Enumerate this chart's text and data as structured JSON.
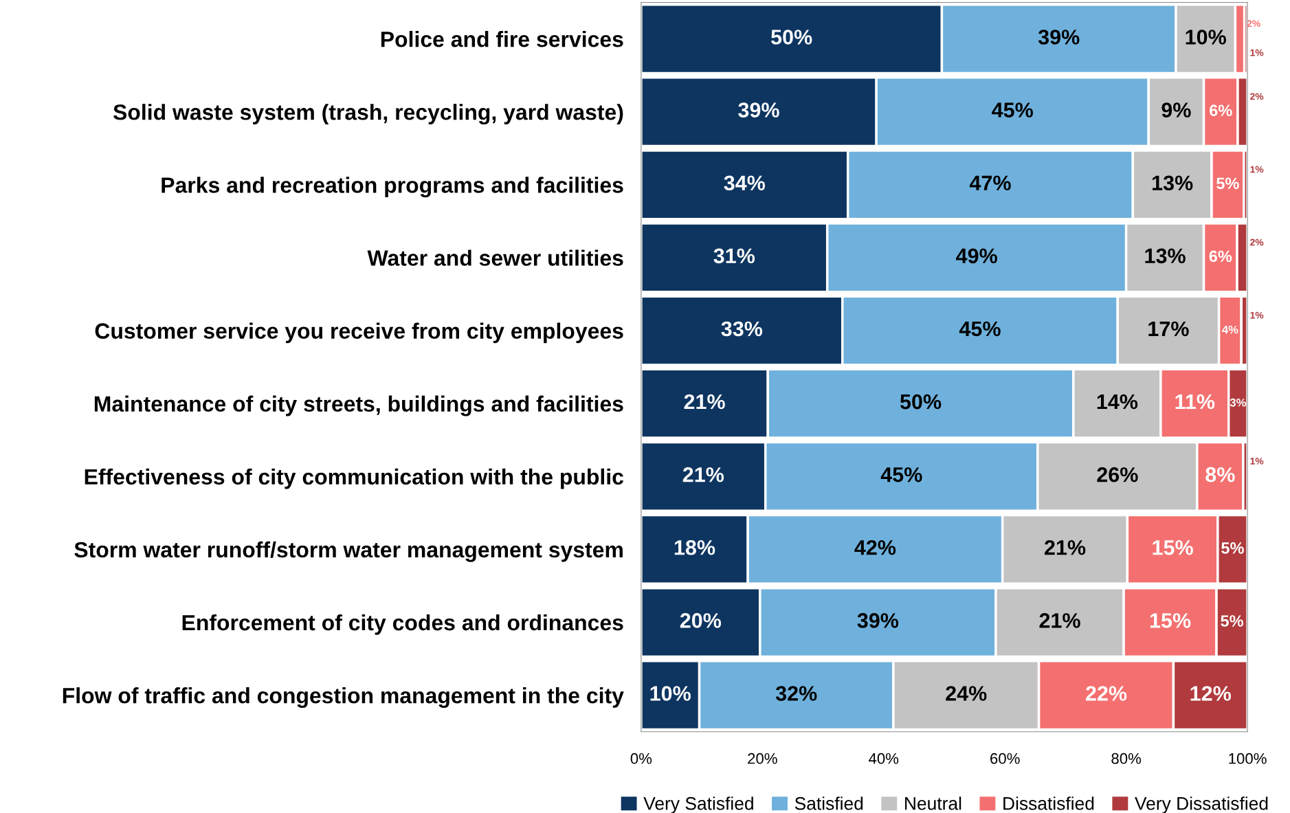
{
  "chart_data": {
    "type": "bar",
    "orientation": "horizontal",
    "stacked": true,
    "categories": [
      "Police and fire services",
      "Solid waste system (trash, recycling, yard waste)",
      "Parks and recreation programs and facilities",
      "Water and sewer utilities",
      "Customer service you receive from city employees",
      "Maintenance of city streets, buildings and facilities",
      "Effectiveness of city communication with the public",
      "Storm water runoff/storm water management system",
      "Enforcement of city codes and ordinances",
      "Flow of traffic and congestion management in the city"
    ],
    "series": [
      {
        "name": "Very Satisfied",
        "color": "#0e3560",
        "values": [
          49.6,
          38.8,
          34.1,
          30.7,
          33.2,
          20.9,
          20.5,
          17.6,
          19.6,
          9.6
        ],
        "value_labels": [
          "50%",
          "39%",
          "34%",
          "31%",
          "33%",
          "21%",
          "21%",
          "18%",
          "20%",
          "10%"
        ]
      },
      {
        "name": "Satisfied",
        "color": "#6fb1dc",
        "values": [
          38.6,
          44.9,
          47.0,
          49.3,
          45.4,
          50.4,
          44.9,
          42.0,
          38.9,
          32.0
        ],
        "value_labels": [
          "39%",
          "45%",
          "47%",
          "49%",
          "45%",
          "50%",
          "45%",
          "42%",
          "39%",
          "32%"
        ]
      },
      {
        "name": "Neutral",
        "color": "#c3c3c3",
        "values": [
          9.8,
          9.1,
          13.0,
          12.8,
          16.7,
          14.4,
          26.3,
          20.6,
          21.1,
          24.0
        ],
        "value_labels": [
          "10%",
          "9%",
          "13%",
          "13%",
          "17%",
          "14%",
          "26%",
          "21%",
          "21%",
          "24%"
        ]
      },
      {
        "name": "Dissatisfied",
        "color": "#f47070",
        "values": [
          1.5,
          5.6,
          5.3,
          5.5,
          3.7,
          11.2,
          7.6,
          14.9,
          15.3,
          22.2
        ],
        "value_labels": [
          "2%",
          "6%",
          "5%",
          "6%",
          "4%",
          "11%",
          "8%",
          "15%",
          "15%",
          "22%"
        ]
      },
      {
        "name": "Very Dissatisfied",
        "color": "#b03a3d",
        "values": [
          0.5,
          1.6,
          0.6,
          1.7,
          1.0,
          3.1,
          0.7,
          4.9,
          5.1,
          12.2
        ],
        "value_labels": [
          "1%",
          "2%",
          "1%",
          "2%",
          "1%",
          "3%",
          "1%",
          "5%",
          "5%",
          "12%"
        ]
      }
    ],
    "xlim": [
      0,
      100
    ],
    "xticks": [
      {
        "value": 0,
        "label": "0%"
      },
      {
        "value": 20,
        "label": "20%"
      },
      {
        "value": 40,
        "label": "40%"
      },
      {
        "value": 60,
        "label": "60%"
      },
      {
        "value": 80,
        "label": "80%"
      },
      {
        "value": 100,
        "label": "100%"
      }
    ],
    "grid": false,
    "legend": "bottom"
  }
}
